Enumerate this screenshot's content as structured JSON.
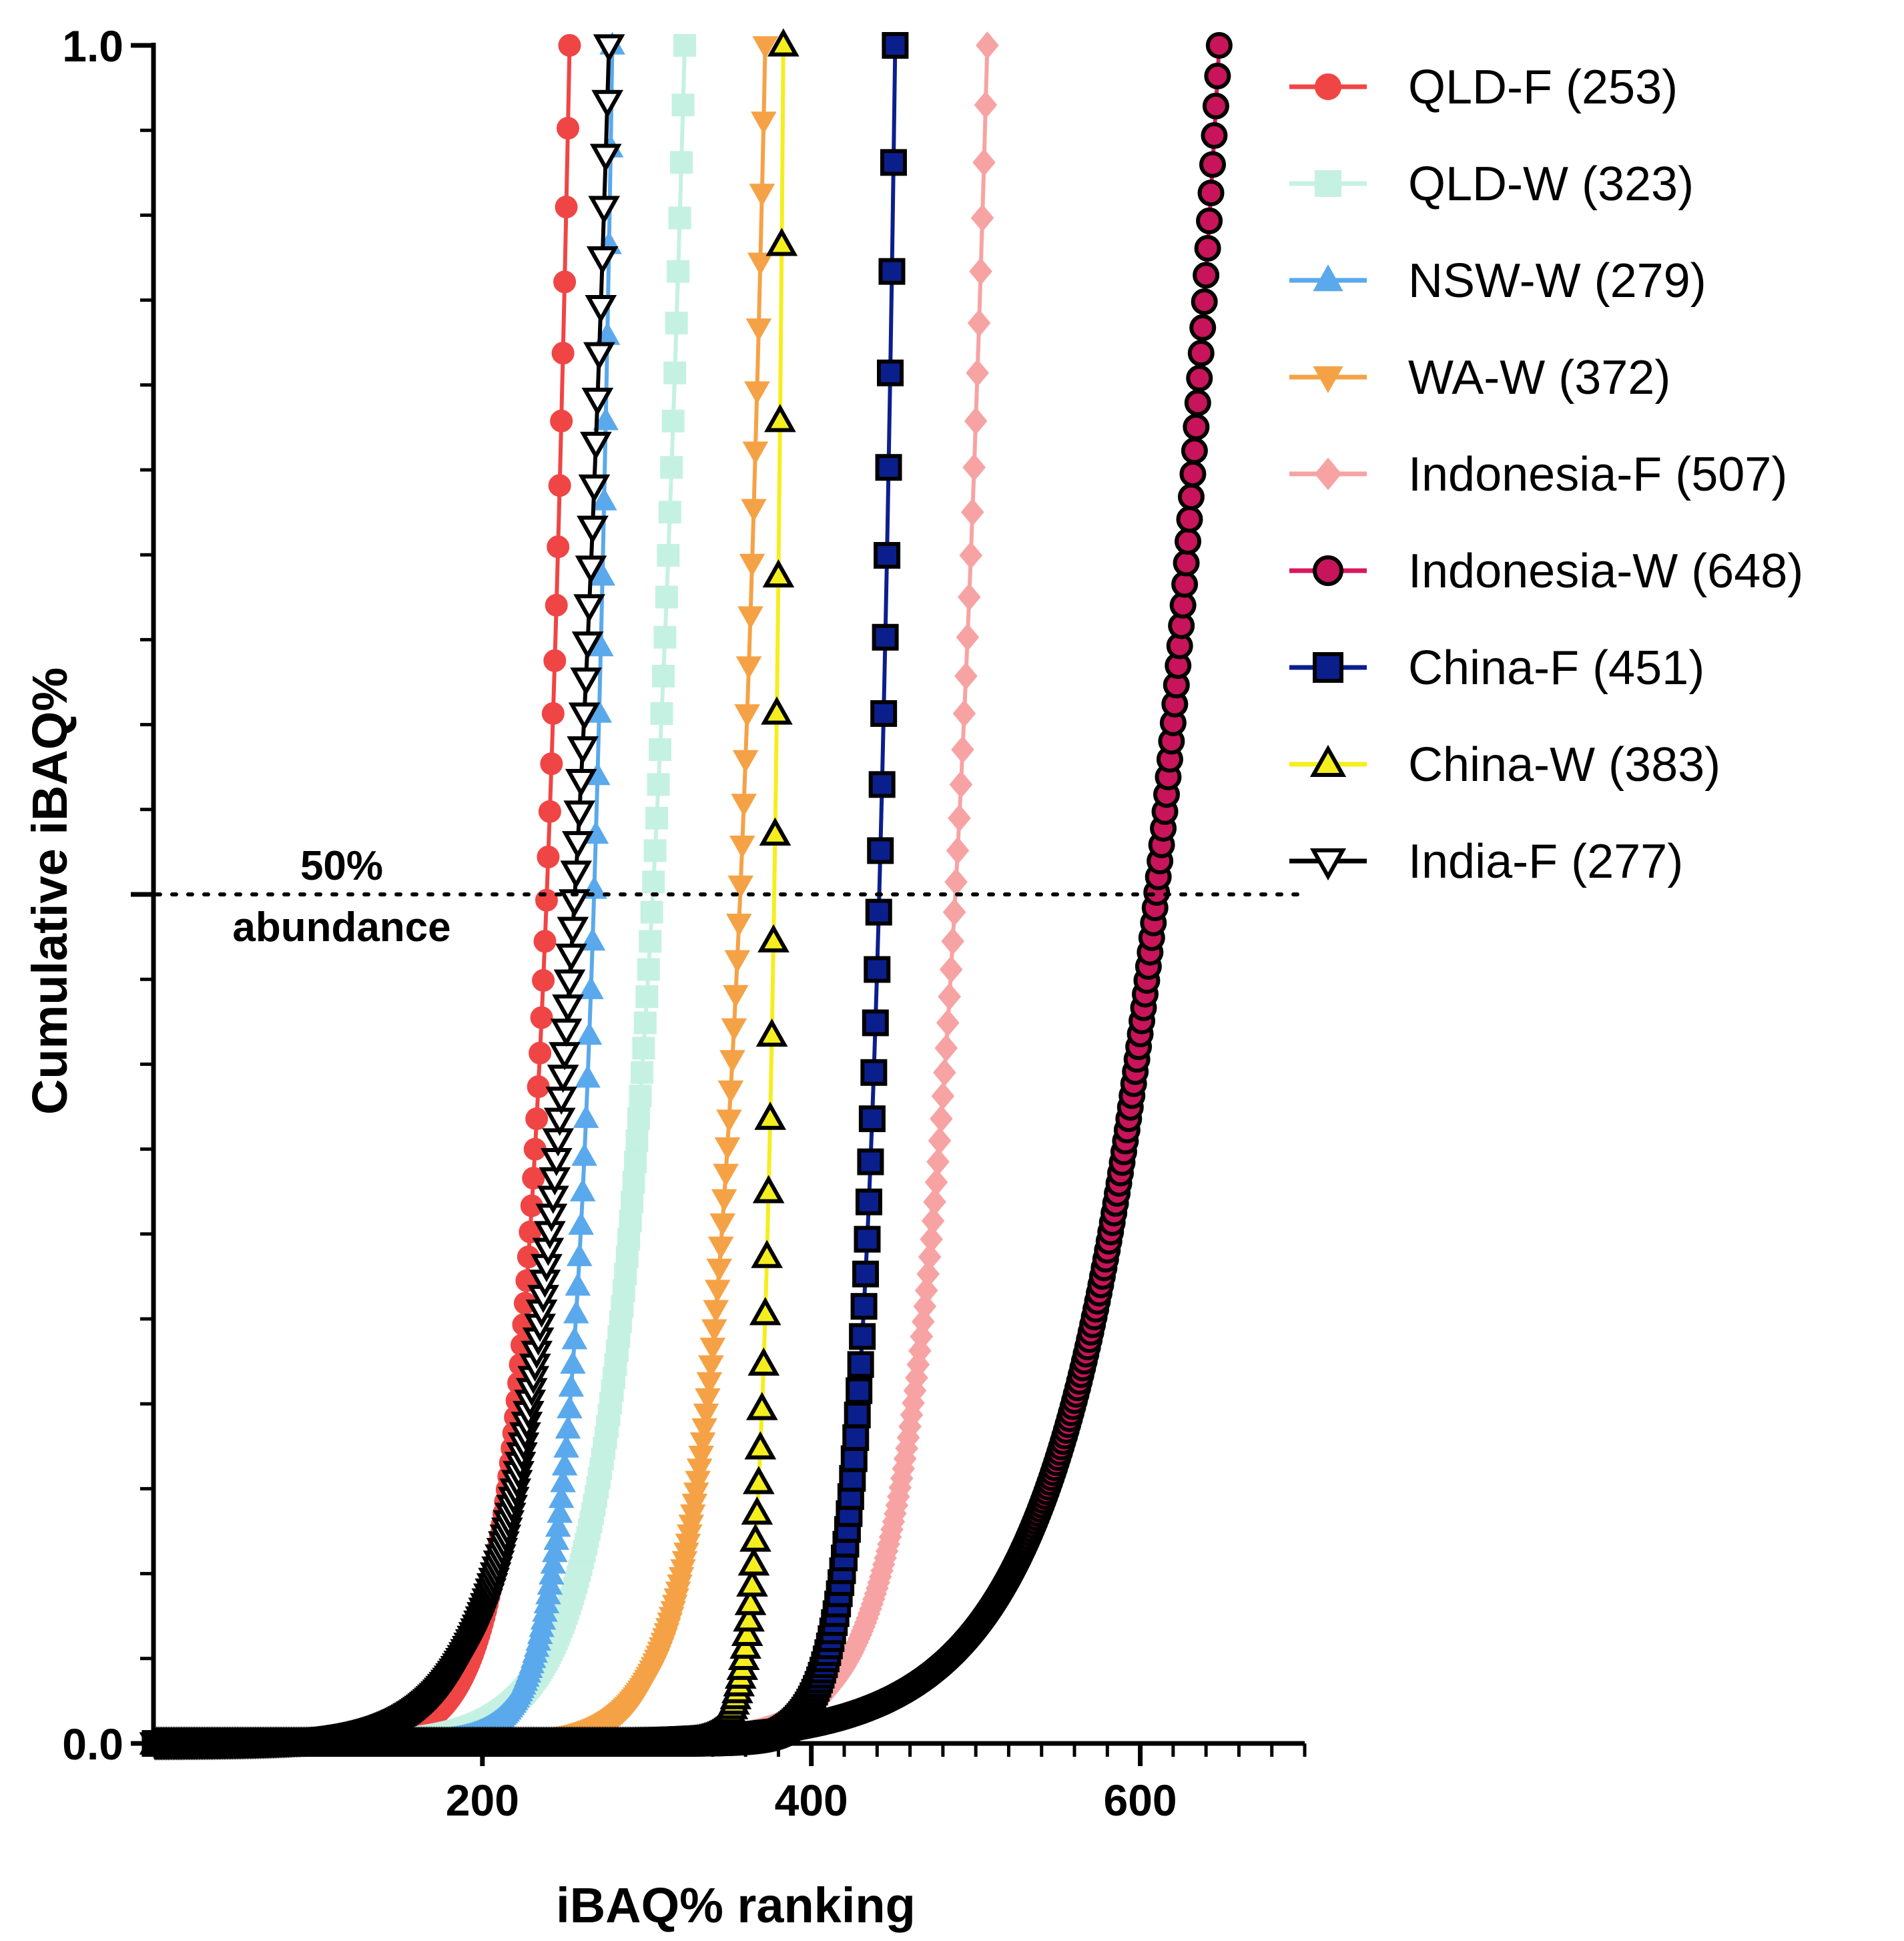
{
  "chart_data": {
    "type": "line",
    "title": "",
    "xlabel": "iBAQ% ranking",
    "ylabel": "Cumulative iBAQ%",
    "xlim": [
      0,
      700
    ],
    "ylim": [
      0,
      1
    ],
    "x_ticks": [
      {
        "value": 200,
        "label": "200"
      },
      {
        "value": 400,
        "label": "400"
      },
      {
        "value": 600,
        "label": "600"
      }
    ],
    "x_minor_step": 20,
    "y_ticks": [
      {
        "value": 0,
        "label": "0.0"
      },
      {
        "value": 0.5,
        "label": ""
      },
      {
        "value": 1,
        "label": "1.0"
      }
    ],
    "y_minor_step": 0.05,
    "grid": false,
    "legend_position": "top-right",
    "reference_line": {
      "y": 0.5,
      "style": "dotted",
      "label_line1": "50%",
      "label_line2": "abundance"
    },
    "series": [
      {
        "name": "QLD-F (253)",
        "n": 253,
        "color": "#f04545",
        "marker": "circle",
        "marker_fill": "#f04545",
        "marker_stroke": "#f04545",
        "curve_k": 20
      },
      {
        "name": "QLD-W (323)",
        "n": 323,
        "color": "#c5f1e2",
        "marker": "square",
        "marker_fill": "#c5f1e2",
        "marker_stroke": "#c5f1e2",
        "curve_k": 28
      },
      {
        "name": "NSW-W (279)",
        "n": 279,
        "color": "#5aa9ec",
        "marker": "triangle-up",
        "marker_fill": "#5aa9ec",
        "marker_stroke": "#5aa9ec",
        "curve_k": 16
      },
      {
        "name": "WA-W (372)",
        "n": 372,
        "color": "#f5a246",
        "marker": "triangle-down",
        "marker_fill": "#f5a246",
        "marker_stroke": "#f5a246",
        "curve_k": 22
      },
      {
        "name": "Indonesia-F (507)",
        "n": 507,
        "color": "#f7a3a3",
        "marker": "diamond",
        "marker_fill": "#f7a3a3",
        "marker_stroke": "#f7a3a3",
        "curve_k": 28
      },
      {
        "name": "Indonesia-W (648)",
        "n": 648,
        "color": "#d9175f",
        "marker": "circle",
        "marker_fill": "#c8145a",
        "marker_stroke": "#000000",
        "curve_k": 55
      },
      {
        "name": "China-F (451)",
        "n": 451,
        "color": "#0b1f8c",
        "marker": "square",
        "marker_fill": "#0b1f8c",
        "marker_stroke": "#000000",
        "curve_k": 14
      },
      {
        "name": "China-W (383)",
        "n": 383,
        "color": "#f5ee1e",
        "marker": "triangle-up",
        "marker_fill": "#f5ee1e",
        "marker_stroke": "#000000",
        "curve_k": 8
      },
      {
        "name": "India-F (277)",
        "n": 277,
        "color": "#000000",
        "marker": "triangle-down",
        "marker_fill": "#ffffff",
        "marker_stroke": "#000000",
        "curve_k": 30
      }
    ]
  }
}
